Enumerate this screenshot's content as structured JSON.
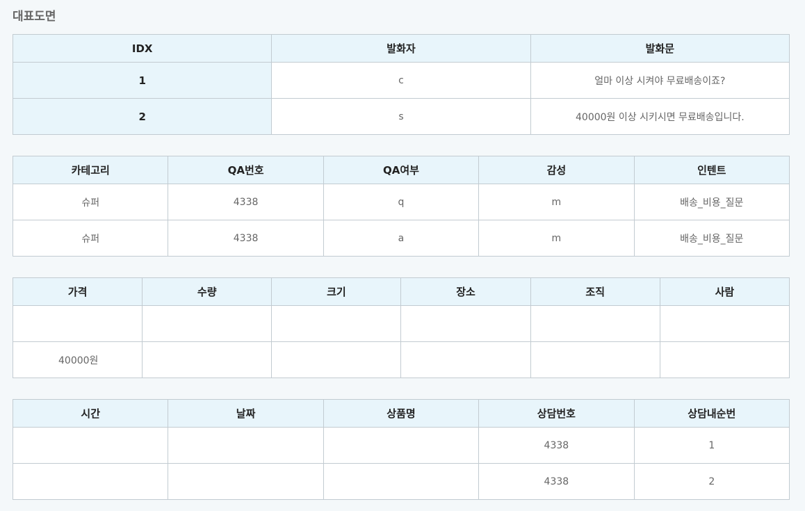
{
  "page_title": "대표도면",
  "table1": {
    "headers": [
      "IDX",
      "발화자",
      "발화문"
    ],
    "rows": [
      [
        "1",
        "c",
        "얼마 이상 시켜야 무료배송이죠?"
      ],
      [
        "2",
        "s",
        "40000원 이상 시키시면 무료배송입니다."
      ]
    ]
  },
  "table2": {
    "headers": [
      "카테고리",
      "QA번호",
      "QA여부",
      "감성",
      "인텐트"
    ],
    "rows": [
      [
        "슈퍼",
        "4338",
        "q",
        "m",
        "배송_비용_질문"
      ],
      [
        "슈퍼",
        "4338",
        "a",
        "m",
        "배송_비용_질문"
      ]
    ]
  },
  "table3": {
    "headers": [
      "가격",
      "수량",
      "크기",
      "장소",
      "조직",
      "사람"
    ],
    "rows": [
      [
        "",
        "",
        "",
        "",
        "",
        ""
      ],
      [
        "40000원",
        "",
        "",
        "",
        "",
        ""
      ]
    ]
  },
  "table4": {
    "headers": [
      "시간",
      "날짜",
      "상품명",
      "상담번호",
      "상담내순번"
    ],
    "rows": [
      [
        "",
        "",
        "",
        "4338",
        "1"
      ],
      [
        "",
        "",
        "",
        "4338",
        "2"
      ]
    ]
  }
}
